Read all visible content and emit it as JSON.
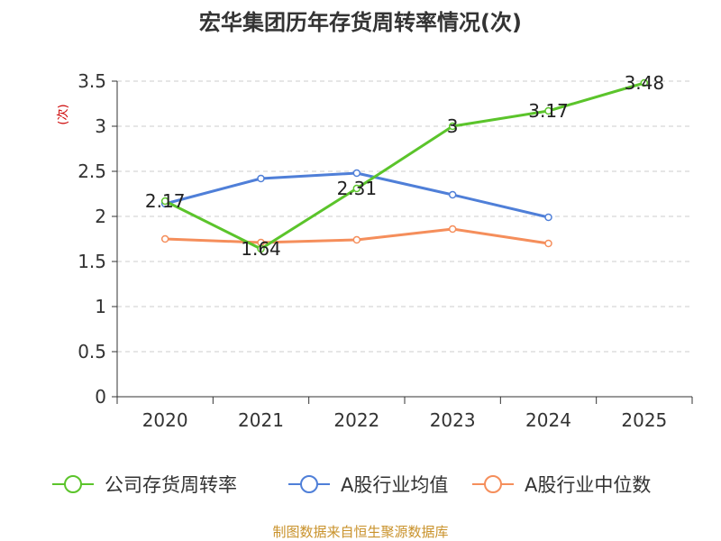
{
  "chart_data": {
    "type": "line",
    "title": "宏华集团历年存货周转率情况(次)",
    "ylabel": "(次)",
    "xlabel": "",
    "categories": [
      "2020",
      "2021",
      "2022",
      "2023",
      "2024",
      "2025"
    ],
    "ylim": [
      0,
      3.5
    ],
    "yticks": [
      "0",
      "0.5",
      "1",
      "1.5",
      "2",
      "2.5",
      "3",
      "3.5"
    ],
    "grid": true,
    "legend_position": "bottom",
    "series": [
      {
        "name": "公司存货周转率",
        "color": "#5bc42b",
        "values": [
          2.17,
          1.64,
          2.31,
          3.0,
          3.17,
          3.48
        ],
        "data_labels": [
          "2.17",
          "1.64",
          "2.31",
          "3",
          "3.17",
          "3.48"
        ],
        "show_markers": true
      },
      {
        "name": "A股行业均值",
        "color": "#4f7fd8",
        "values": [
          2.14,
          2.42,
          2.48,
          2.24,
          1.99,
          null
        ],
        "show_markers": true
      },
      {
        "name": "A股行业中位数",
        "color": "#f58e5b",
        "values": [
          1.75,
          1.71,
          1.74,
          1.86,
          1.7,
          null
        ],
        "show_markers": true
      }
    ],
    "source": "制图数据来自恒生聚源数据库",
    "colors": {
      "unit_label": "#cc0000",
      "source_text": "#c9922b",
      "grid": "#cccccc",
      "axis": "#333333"
    }
  }
}
